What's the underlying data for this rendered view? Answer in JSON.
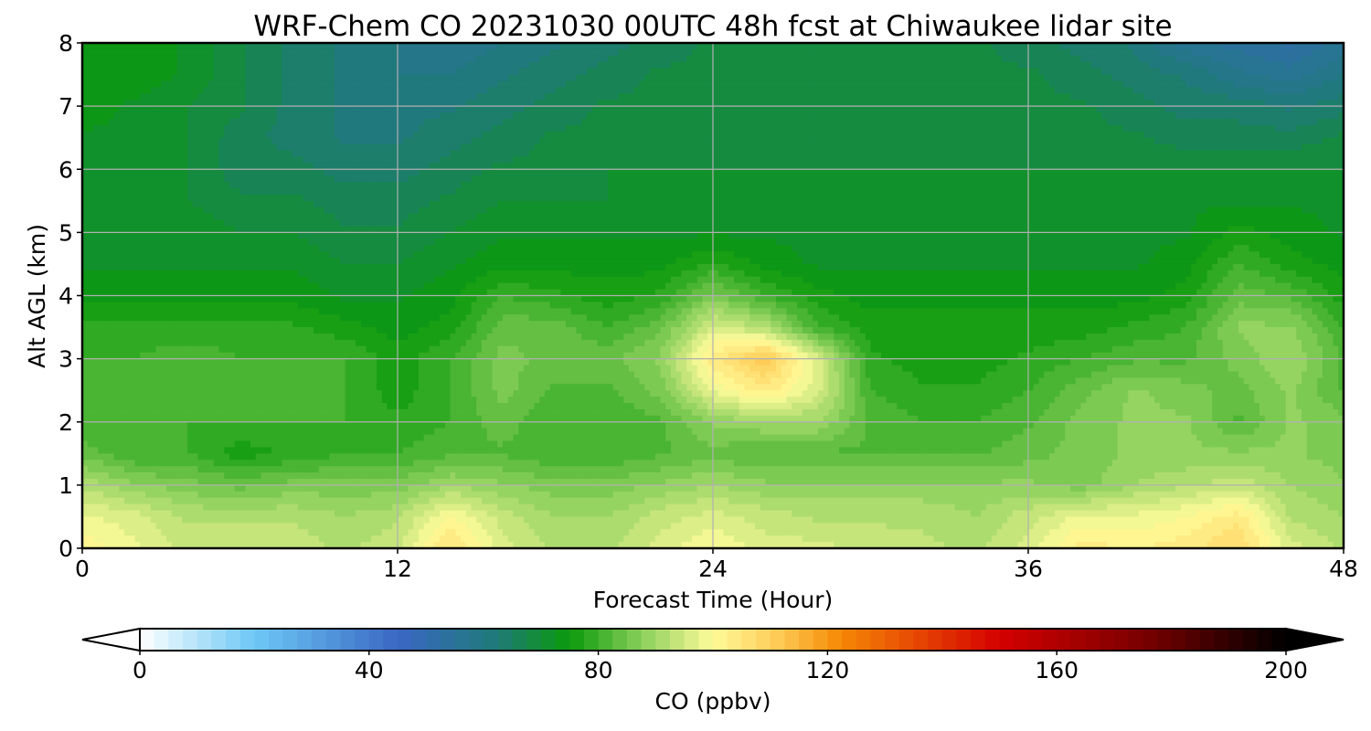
{
  "chart_data": {
    "type": "heatmap",
    "title": "WRF-Chem CO  20231030 00UTC 48h fcst at Chiwaukee lidar site",
    "xlabel": "Forecast Time (Hour)",
    "ylabel": "Alt AGL (km)",
    "xlim": [
      0,
      48
    ],
    "ylim": [
      0,
      8
    ],
    "x_ticks": [
      "0",
      "12",
      "24",
      "36",
      "48"
    ],
    "y_ticks": [
      "0",
      "1",
      "2",
      "3",
      "4",
      "5",
      "6",
      "7",
      "8"
    ],
    "grid": true,
    "colorbar": {
      "label": "CO  (ppbv)",
      "range": [
        0,
        200
      ],
      "extend": "both",
      "ticks": [
        "0",
        "40",
        "80",
        "120",
        "160",
        "200"
      ],
      "stops": [
        {
          "v": 0,
          "c": "#ffffff"
        },
        {
          "v": 20,
          "c": "#6cc8f5"
        },
        {
          "v": 45,
          "c": "#3a67c4"
        },
        {
          "v": 62,
          "c": "#1f7a7a"
        },
        {
          "v": 75,
          "c": "#0b9a0b"
        },
        {
          "v": 88,
          "c": "#8fd15e"
        },
        {
          "v": 100,
          "c": "#fffb9a"
        },
        {
          "v": 112,
          "c": "#fdc851"
        },
        {
          "v": 122,
          "c": "#f68a06"
        },
        {
          "v": 150,
          "c": "#d40000"
        },
        {
          "v": 175,
          "c": "#7a0000"
        },
        {
          "v": 200,
          "c": "#000000"
        }
      ]
    },
    "x_hours": [
      0,
      2,
      4,
      6,
      8,
      10,
      12,
      14,
      16,
      18,
      20,
      22,
      24,
      26,
      28,
      30,
      32,
      34,
      36,
      38,
      40,
      42,
      44,
      46,
      48
    ],
    "y_km": [
      0,
      0.5,
      1,
      1.5,
      2,
      2.5,
      3,
      3.5,
      4,
      4.5,
      5,
      5.5,
      6,
      6.5,
      7,
      7.5,
      8
    ],
    "co_ppbv": [
      [
        102,
        98,
        94,
        94,
        94,
        92,
        94,
        106,
        96,
        92,
        92,
        96,
        100,
        96,
        96,
        94,
        93,
        92,
        96,
        104,
        102,
        104,
        108,
        96,
        92
      ],
      [
        98,
        96,
        92,
        92,
        92,
        90,
        92,
        100,
        94,
        90,
        90,
        94,
        96,
        94,
        92,
        92,
        92,
        90,
        94,
        98,
        98,
        100,
        104,
        92,
        90
      ],
      [
        92,
        88,
        86,
        84,
        86,
        86,
        86,
        90,
        88,
        86,
        86,
        88,
        90,
        88,
        88,
        88,
        88,
        88,
        88,
        86,
        90,
        92,
        94,
        90,
        88
      ],
      [
        84,
        80,
        80,
        76,
        78,
        80,
        80,
        82,
        82,
        80,
        80,
        82,
        84,
        82,
        82,
        82,
        82,
        82,
        84,
        86,
        88,
        88,
        88,
        88,
        86
      ],
      [
        80,
        80,
        80,
        80,
        80,
        80,
        78,
        80,
        84,
        80,
        80,
        82,
        88,
        90,
        90,
        82,
        80,
        80,
        82,
        86,
        88,
        88,
        82,
        88,
        86
      ],
      [
        80,
        80,
        82,
        80,
        80,
        80,
        76,
        80,
        86,
        82,
        82,
        86,
        98,
        104,
        96,
        80,
        78,
        78,
        80,
        84,
        88,
        86,
        84,
        88,
        82
      ],
      [
        80,
        80,
        82,
        80,
        80,
        80,
        76,
        80,
        86,
        84,
        84,
        88,
        104,
        112,
        96,
        78,
        76,
        76,
        78,
        80,
        82,
        82,
        86,
        90,
        82
      ],
      [
        78,
        78,
        78,
        78,
        78,
        76,
        74,
        76,
        84,
        84,
        80,
        84,
        96,
        92,
        80,
        76,
        76,
        76,
        76,
        76,
        78,
        80,
        88,
        88,
        80
      ],
      [
        74,
        74,
        74,
        74,
        74,
        72,
        72,
        74,
        80,
        78,
        76,
        78,
        86,
        80,
        76,
        74,
        74,
        74,
        74,
        74,
        74,
        76,
        84,
        82,
        76
      ],
      [
        72,
        72,
        72,
        72,
        72,
        70,
        70,
        72,
        74,
        74,
        74,
        74,
        78,
        74,
        72,
        72,
        72,
        72,
        72,
        72,
        72,
        74,
        80,
        76,
        74
      ],
      [
        72,
        72,
        72,
        70,
        70,
        68,
        68,
        70,
        72,
        72,
        72,
        72,
        72,
        72,
        72,
        72,
        72,
        72,
        72,
        72,
        72,
        72,
        76,
        74,
        72
      ],
      [
        72,
        72,
        70,
        68,
        68,
        66,
        66,
        68,
        70,
        70,
        70,
        70,
        70,
        70,
        72,
        72,
        72,
        72,
        72,
        72,
        72,
        72,
        72,
        72,
        72
      ],
      [
        72,
        72,
        70,
        66,
        66,
        64,
        64,
        66,
        68,
        68,
        70,
        70,
        70,
        70,
        70,
        70,
        70,
        70,
        70,
        70,
        70,
        70,
        70,
        70,
        70
      ],
      [
        72,
        72,
        70,
        66,
        64,
        62,
        62,
        64,
        66,
        68,
        68,
        68,
        68,
        68,
        68,
        68,
        68,
        68,
        68,
        68,
        68,
        66,
        66,
        66,
        68
      ],
      [
        74,
        72,
        70,
        68,
        64,
        62,
        62,
        62,
        64,
        66,
        68,
        68,
        68,
        68,
        68,
        68,
        68,
        68,
        68,
        68,
        66,
        64,
        64,
        62,
        64
      ],
      [
        74,
        74,
        72,
        68,
        64,
        62,
        60,
        60,
        62,
        64,
        66,
        68,
        68,
        68,
        68,
        68,
        68,
        68,
        68,
        66,
        64,
        62,
        58,
        56,
        60
      ],
      [
        74,
        74,
        72,
        68,
        64,
        62,
        60,
        58,
        60,
        62,
        64,
        66,
        68,
        68,
        68,
        68,
        68,
        68,
        66,
        64,
        62,
        56,
        54,
        52,
        56
      ]
    ]
  }
}
